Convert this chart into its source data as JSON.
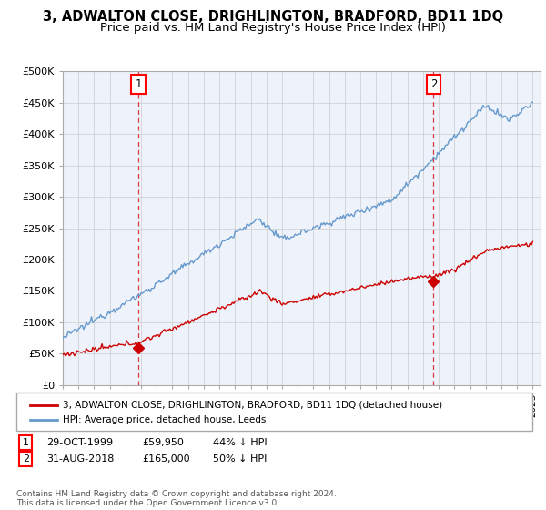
{
  "title": "3, ADWALTON CLOSE, DRIGHLINGTON, BRADFORD, BD11 1DQ",
  "subtitle": "Price paid vs. HM Land Registry's House Price Index (HPI)",
  "ylim": [
    0,
    500000
  ],
  "yticks": [
    0,
    50000,
    100000,
    150000,
    200000,
    250000,
    300000,
    350000,
    400000,
    450000,
    500000
  ],
  "ytick_labels": [
    "£0",
    "£50K",
    "£100K",
    "£150K",
    "£200K",
    "£250K",
    "£300K",
    "£350K",
    "£400K",
    "£450K",
    "£500K"
  ],
  "xlim_start": 1995.0,
  "xlim_end": 2025.5,
  "sale1_year": 1999.83,
  "sale1_price": 59950,
  "sale1_label": "1",
  "sale2_year": 2018.67,
  "sale2_price": 165000,
  "sale2_label": "2",
  "hpi_color": "#6699cc",
  "property_color": "#cc0000",
  "plot_bg_color": "#eef2fa",
  "grid_color": "#cccccc",
  "legend_line1": "3, ADWALTON CLOSE, DRIGHLINGTON, BRADFORD, BD11 1DQ (detached house)",
  "legend_line2": "HPI: Average price, detached house, Leeds",
  "table_row1": [
    "1",
    "29-OCT-1999",
    "£59,950",
    "44% ↓ HPI"
  ],
  "table_row2": [
    "2",
    "31-AUG-2018",
    "£165,000",
    "50% ↓ HPI"
  ],
  "footnote": "Contains HM Land Registry data © Crown copyright and database right 2024.\nThis data is licensed under the Open Government Licence v3.0."
}
